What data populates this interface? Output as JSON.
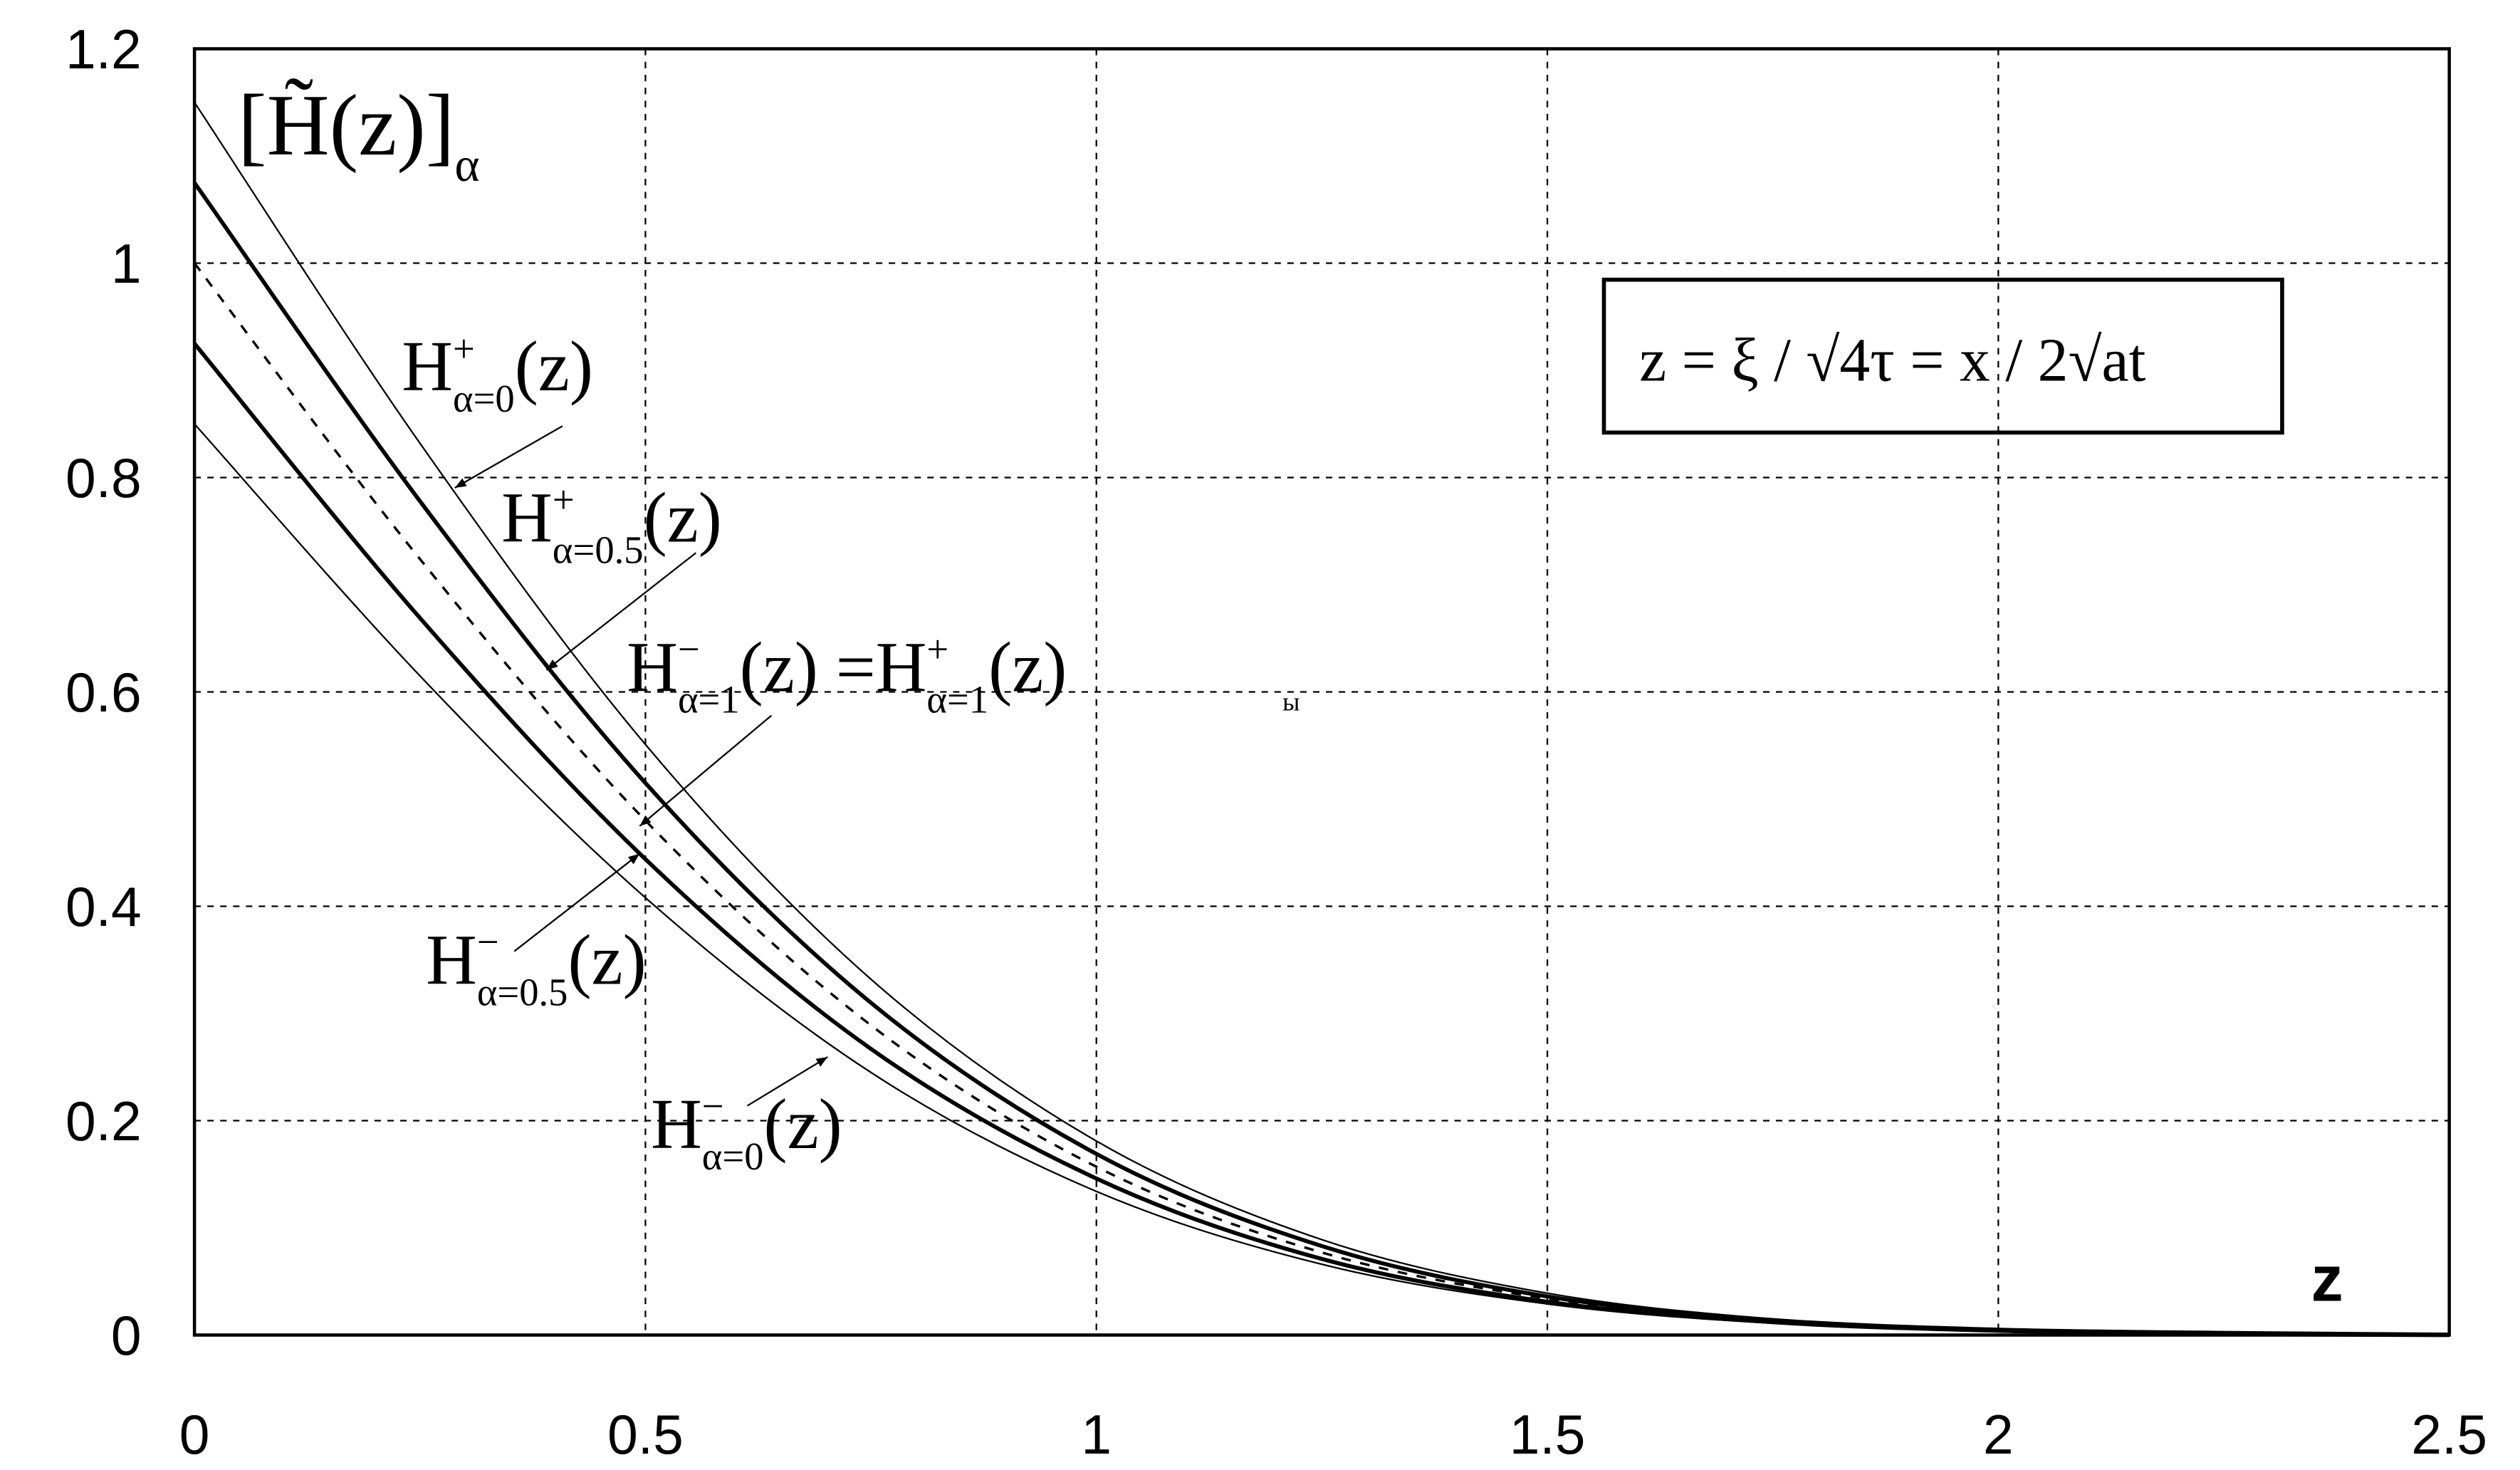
{
  "chart_data": {
    "type": "line",
    "x": [
      0,
      0.25,
      0.5,
      0.75,
      1,
      1.25,
      1.5,
      1.75,
      2,
      2.25,
      2.5
    ],
    "series": [
      {
        "color": "#000000",
        "width": 1,
        "dash": false,
        "values": [
          1.15,
          0.832,
          0.551,
          0.332,
          0.181,
          0.089,
          0.039,
          0.015,
          0.005,
          0.002,
          0.0005
        ]
      },
      {
        "color": "#000000",
        "width": 2.5,
        "dash": false,
        "values": [
          1.075,
          0.778,
          0.515,
          0.31,
          0.169,
          0.083,
          0.036,
          0.014,
          0.005,
          0.002,
          0.0004
        ]
      },
      {
        "color": "#000000",
        "width": 1.5,
        "dash": true,
        "values": [
          1,
          0.724,
          0.48,
          0.289,
          0.157,
          0.077,
          0.034,
          0.013,
          0.005,
          0.002,
          0
        ]
      },
      {
        "color": "#000000",
        "width": 2.5,
        "dash": false,
        "values": [
          0.925,
          0.669,
          0.444,
          0.267,
          0.146,
          0.071,
          0.031,
          0.012,
          0.004,
          0.001,
          0
        ]
      },
      {
        "color": "#000000",
        "width": 1,
        "dash": false,
        "values": [
          0.85,
          0.615,
          0.408,
          0.245,
          0.134,
          0.066,
          0.029,
          0.011,
          0.004,
          0.001,
          0
        ]
      }
    ],
    "xlim": [
      0,
      2.5
    ],
    "ylim": [
      0,
      1.2
    ],
    "xticks": [
      0,
      0.5,
      1,
      1.5,
      2,
      2.5
    ],
    "yticks": [
      0,
      0.2,
      0.4,
      0.6,
      0.8,
      1,
      1.2
    ],
    "grid": true,
    "x_label": "z",
    "y_label": {
      "base": "[H̃(z)]",
      "sub": "α"
    },
    "formula": "z = ξ / √4τ = x / 2√at",
    "annotations": [
      {
        "parts": [
          {
            "base": "H",
            "sup": "+",
            "sub": "α=0",
            "tail": "(z)"
          }
        ]
      },
      {
        "parts": [
          {
            "base": "H",
            "sup": "+",
            "sub": "α=0.5",
            "tail": "(z)"
          }
        ]
      },
      {
        "parts": [
          {
            "base": "H",
            "sup": "−",
            "sub": "α=1",
            "tail": "(z) = "
          },
          {
            "base": "H",
            "sup": "+",
            "sub": "α=1",
            "tail": "(z)"
          }
        ]
      },
      {
        "parts": [
          {
            "base": "H",
            "sup": "−",
            "sub": "α=0.5",
            "tail": "(z)"
          }
        ]
      },
      {
        "parts": [
          {
            "base": "H",
            "sup": "−",
            "sub": "α=0",
            "tail": "(z)"
          }
        ]
      },
      {
        "parts": [
          {
            "base": "ы"
          }
        ]
      }
    ]
  }
}
